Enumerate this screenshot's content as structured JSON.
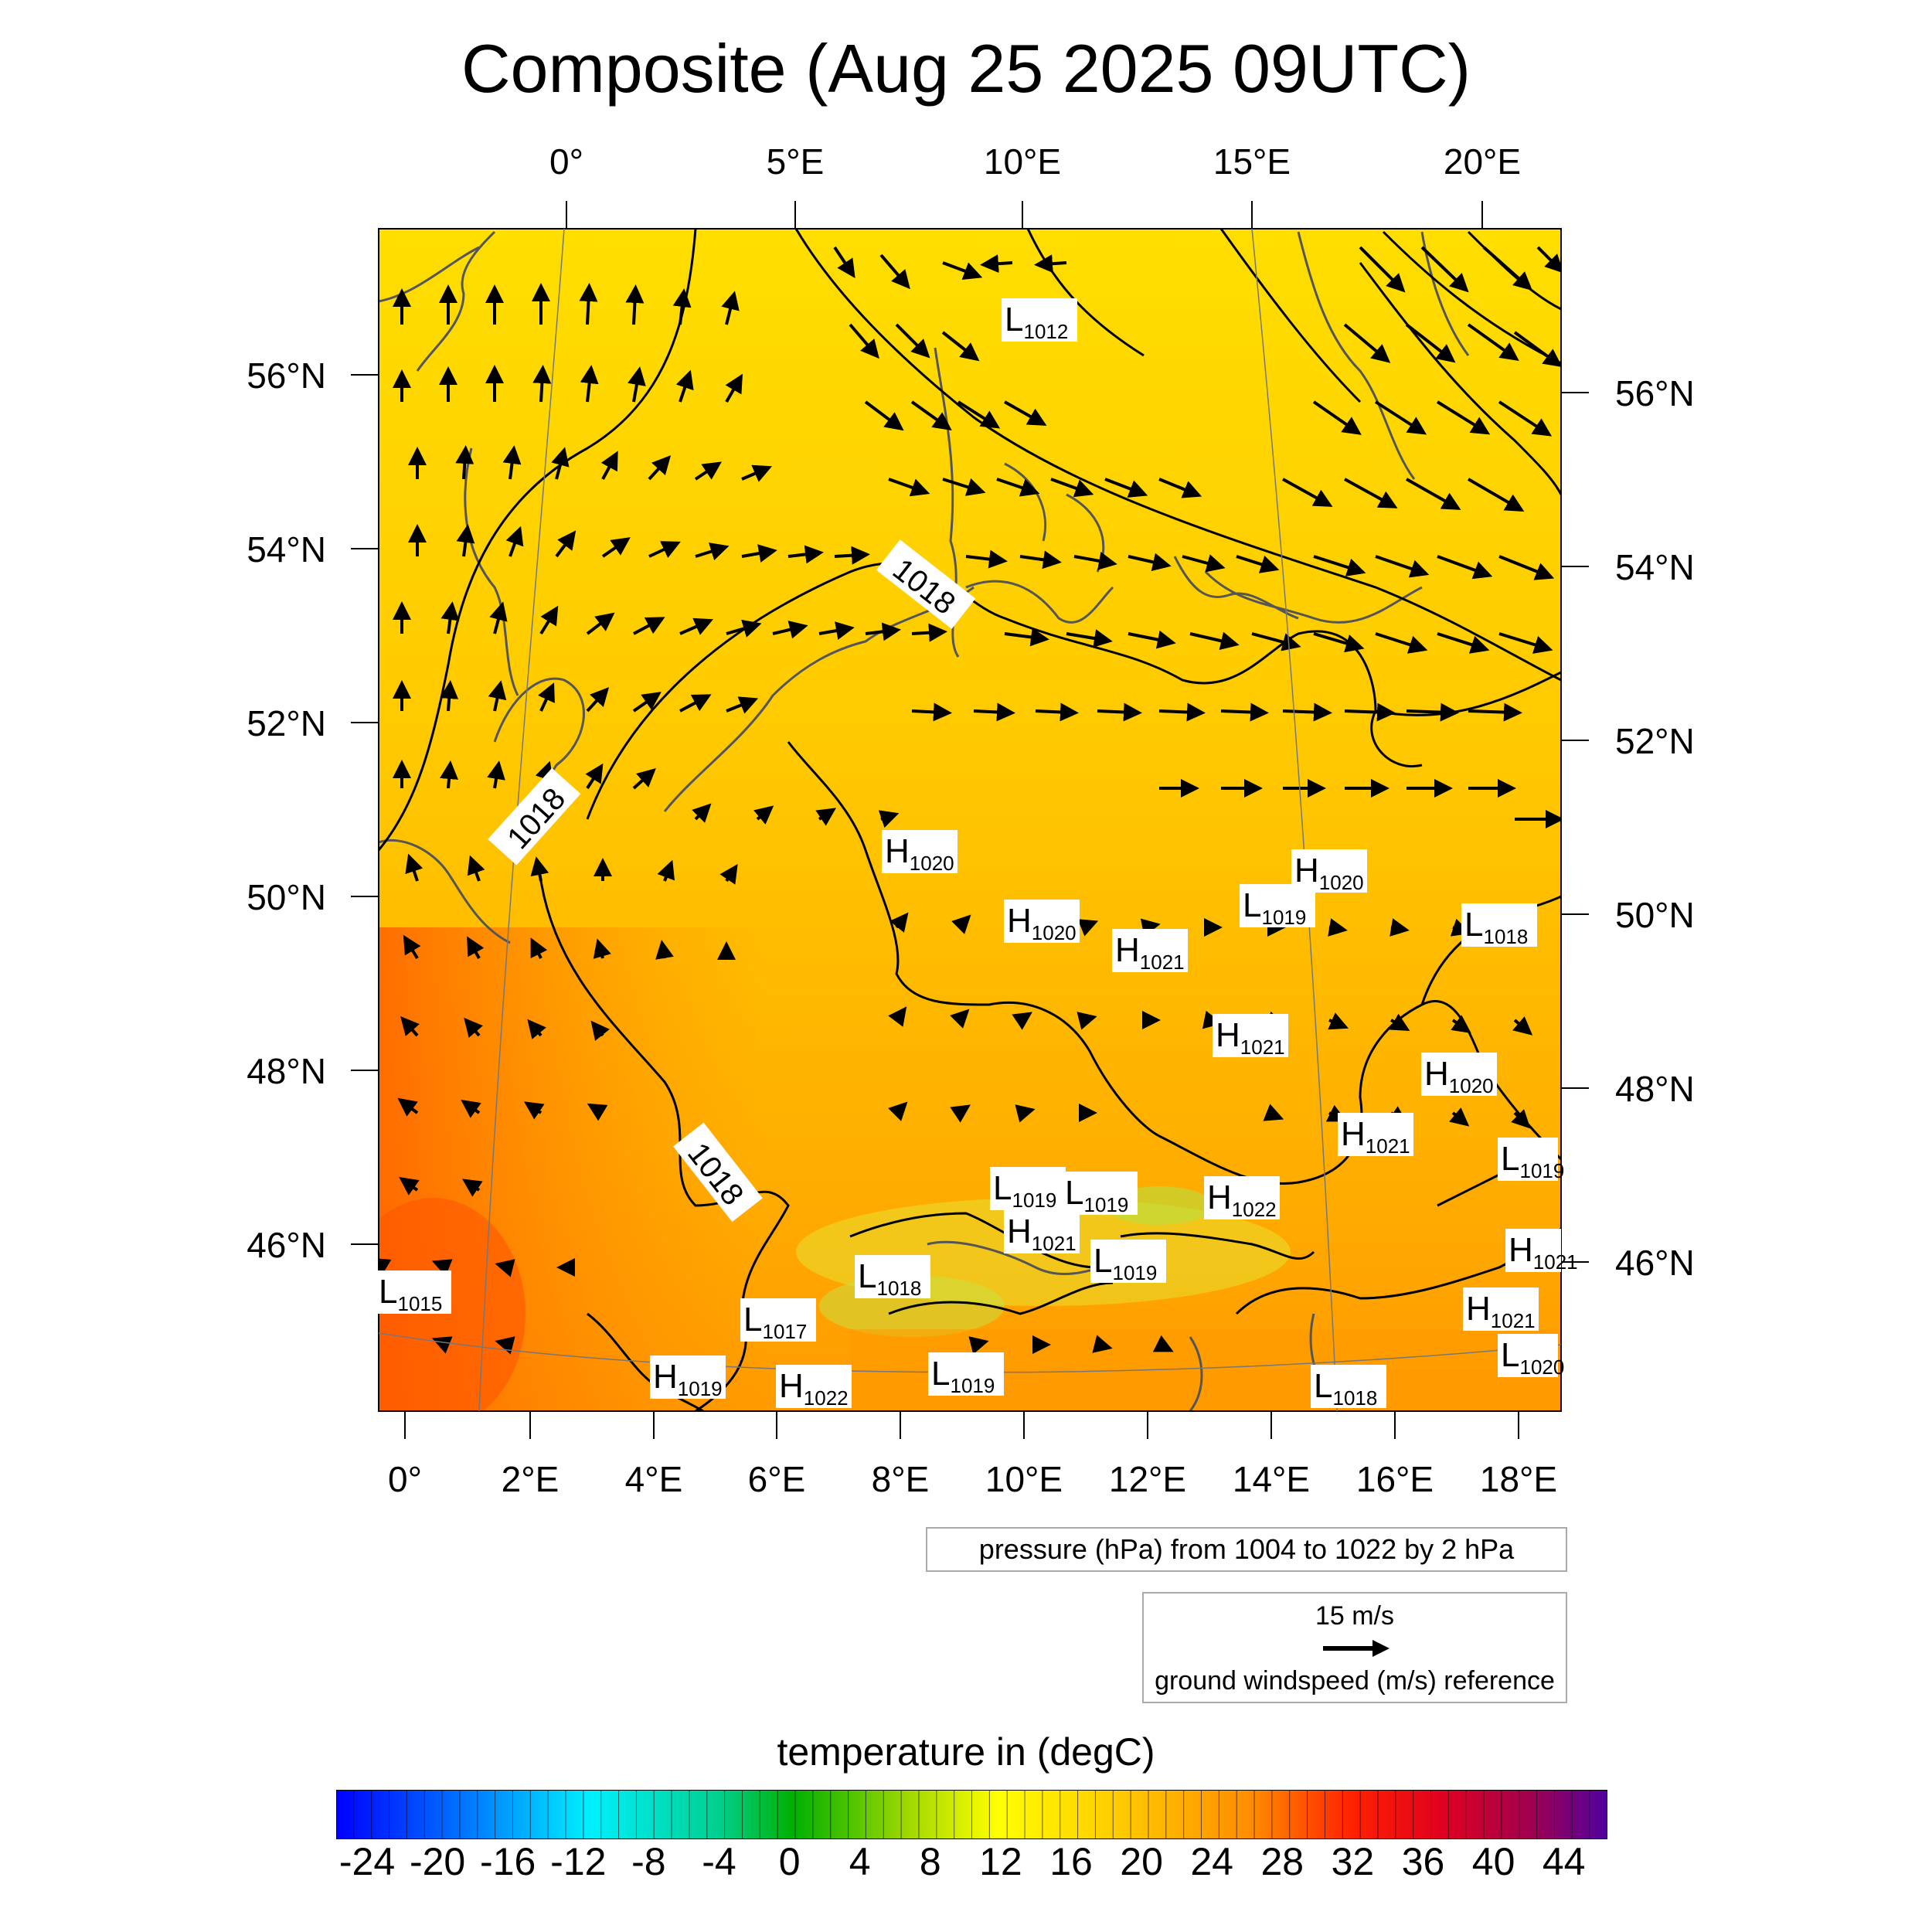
{
  "title": "Composite (Aug 25 2025 09UTC)",
  "map": {
    "top_lon_labels": [
      "0°",
      "5°E",
      "10°E",
      "15°E",
      "20°E"
    ],
    "bottom_lon_labels": [
      "0°",
      "2°E",
      "4°E",
      "6°E",
      "8°E",
      "10°E",
      "12°E",
      "14°E",
      "16°E",
      "18°E"
    ],
    "left_lat_labels": [
      "56°N",
      "54°N",
      "52°N",
      "50°N",
      "48°N",
      "46°N"
    ],
    "right_lat_labels": [
      "56°N",
      "54°N",
      "52°N",
      "50°N",
      "48°N",
      "46°N"
    ],
    "isobar_labels": [
      "1018",
      "1018",
      "1018"
    ],
    "pressure_centers": [
      {
        "type": "L",
        "value": "1012"
      },
      {
        "type": "H",
        "value": "1020"
      },
      {
        "type": "H",
        "value": "1020"
      },
      {
        "type": "H",
        "value": "1020"
      },
      {
        "type": "L",
        "value": "1019"
      },
      {
        "type": "H",
        "value": "1021"
      },
      {
        "type": "L",
        "value": "1018"
      },
      {
        "type": "H",
        "value": "1021"
      },
      {
        "type": "H",
        "value": "1020"
      },
      {
        "type": "H",
        "value": "1021"
      },
      {
        "type": "L",
        "value": "1019"
      },
      {
        "type": "L",
        "value": "1019"
      },
      {
        "type": "L",
        "value": "1019"
      },
      {
        "type": "H",
        "value": "1022"
      },
      {
        "type": "H",
        "value": "1021"
      },
      {
        "type": "L",
        "value": "1019"
      },
      {
        "type": "L",
        "value": "1018"
      },
      {
        "type": "L",
        "value": "1015"
      },
      {
        "type": "L",
        "value": "1017"
      },
      {
        "type": "H",
        "value": "1019"
      },
      {
        "type": "H",
        "value": "1022"
      },
      {
        "type": "L",
        "value": "1019"
      },
      {
        "type": "L",
        "value": "1018"
      },
      {
        "type": "H",
        "value": "1021"
      },
      {
        "type": "L",
        "value": "1020"
      },
      {
        "type": "H",
        "value": "1021"
      }
    ]
  },
  "legend": {
    "pressure": "pressure (hPa) from 1004 to 1022 by 2 hPa",
    "wind_speed": "15 m/s",
    "wind_caption": "ground windspeed (m/s) reference"
  },
  "colorbar": {
    "title": "temperature in (degC)",
    "ticks": [
      "-24",
      "-20",
      "-16",
      "-12",
      "-8",
      "-4",
      "0",
      "4",
      "8",
      "12",
      "16",
      "20",
      "24",
      "28",
      "32",
      "36",
      "40",
      "44"
    ],
    "colors": [
      "#0000ff",
      "#0040ff",
      "#0080ff",
      "#00b0ff",
      "#00e0ff",
      "#00e0c0",
      "#00c060",
      "#00b000",
      "#60c000",
      "#c0e000",
      "#ffff00",
      "#ffe000",
      "#ffc000",
      "#ff9000",
      "#ff5000",
      "#ff0000",
      "#c00040",
      "#5000a0"
    ]
  }
}
